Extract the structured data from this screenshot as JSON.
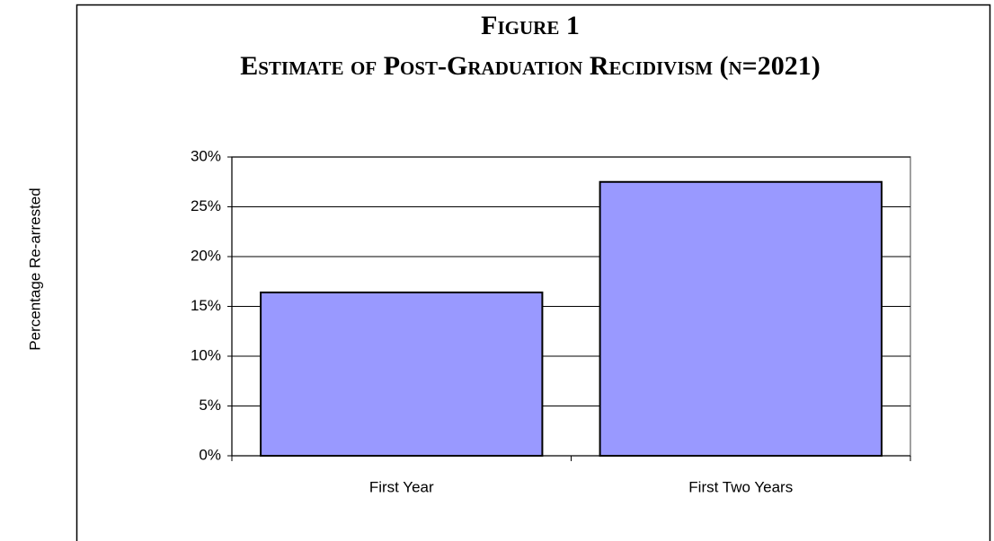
{
  "chart_data": {
    "type": "bar",
    "title": "Figure 1",
    "subtitle": "Estimate of Post-Graduation Recidivism (n=2021)",
    "ylabel": "Percentage Re-arrested",
    "categories": [
      "First Year",
      "First Two Years"
    ],
    "values": [
      16.4,
      27.5
    ],
    "color": "#9999ff",
    "ylim": [
      0,
      30
    ],
    "yticks": [
      {
        "value": 0,
        "label": "0%"
      },
      {
        "value": 5,
        "label": "5%"
      },
      {
        "value": 10,
        "label": "10%"
      },
      {
        "value": 15,
        "label": "15%"
      },
      {
        "value": 20,
        "label": "20%"
      },
      {
        "value": 25,
        "label": "25%"
      },
      {
        "value": 30,
        "label": "30%"
      }
    ],
    "grid": true
  }
}
